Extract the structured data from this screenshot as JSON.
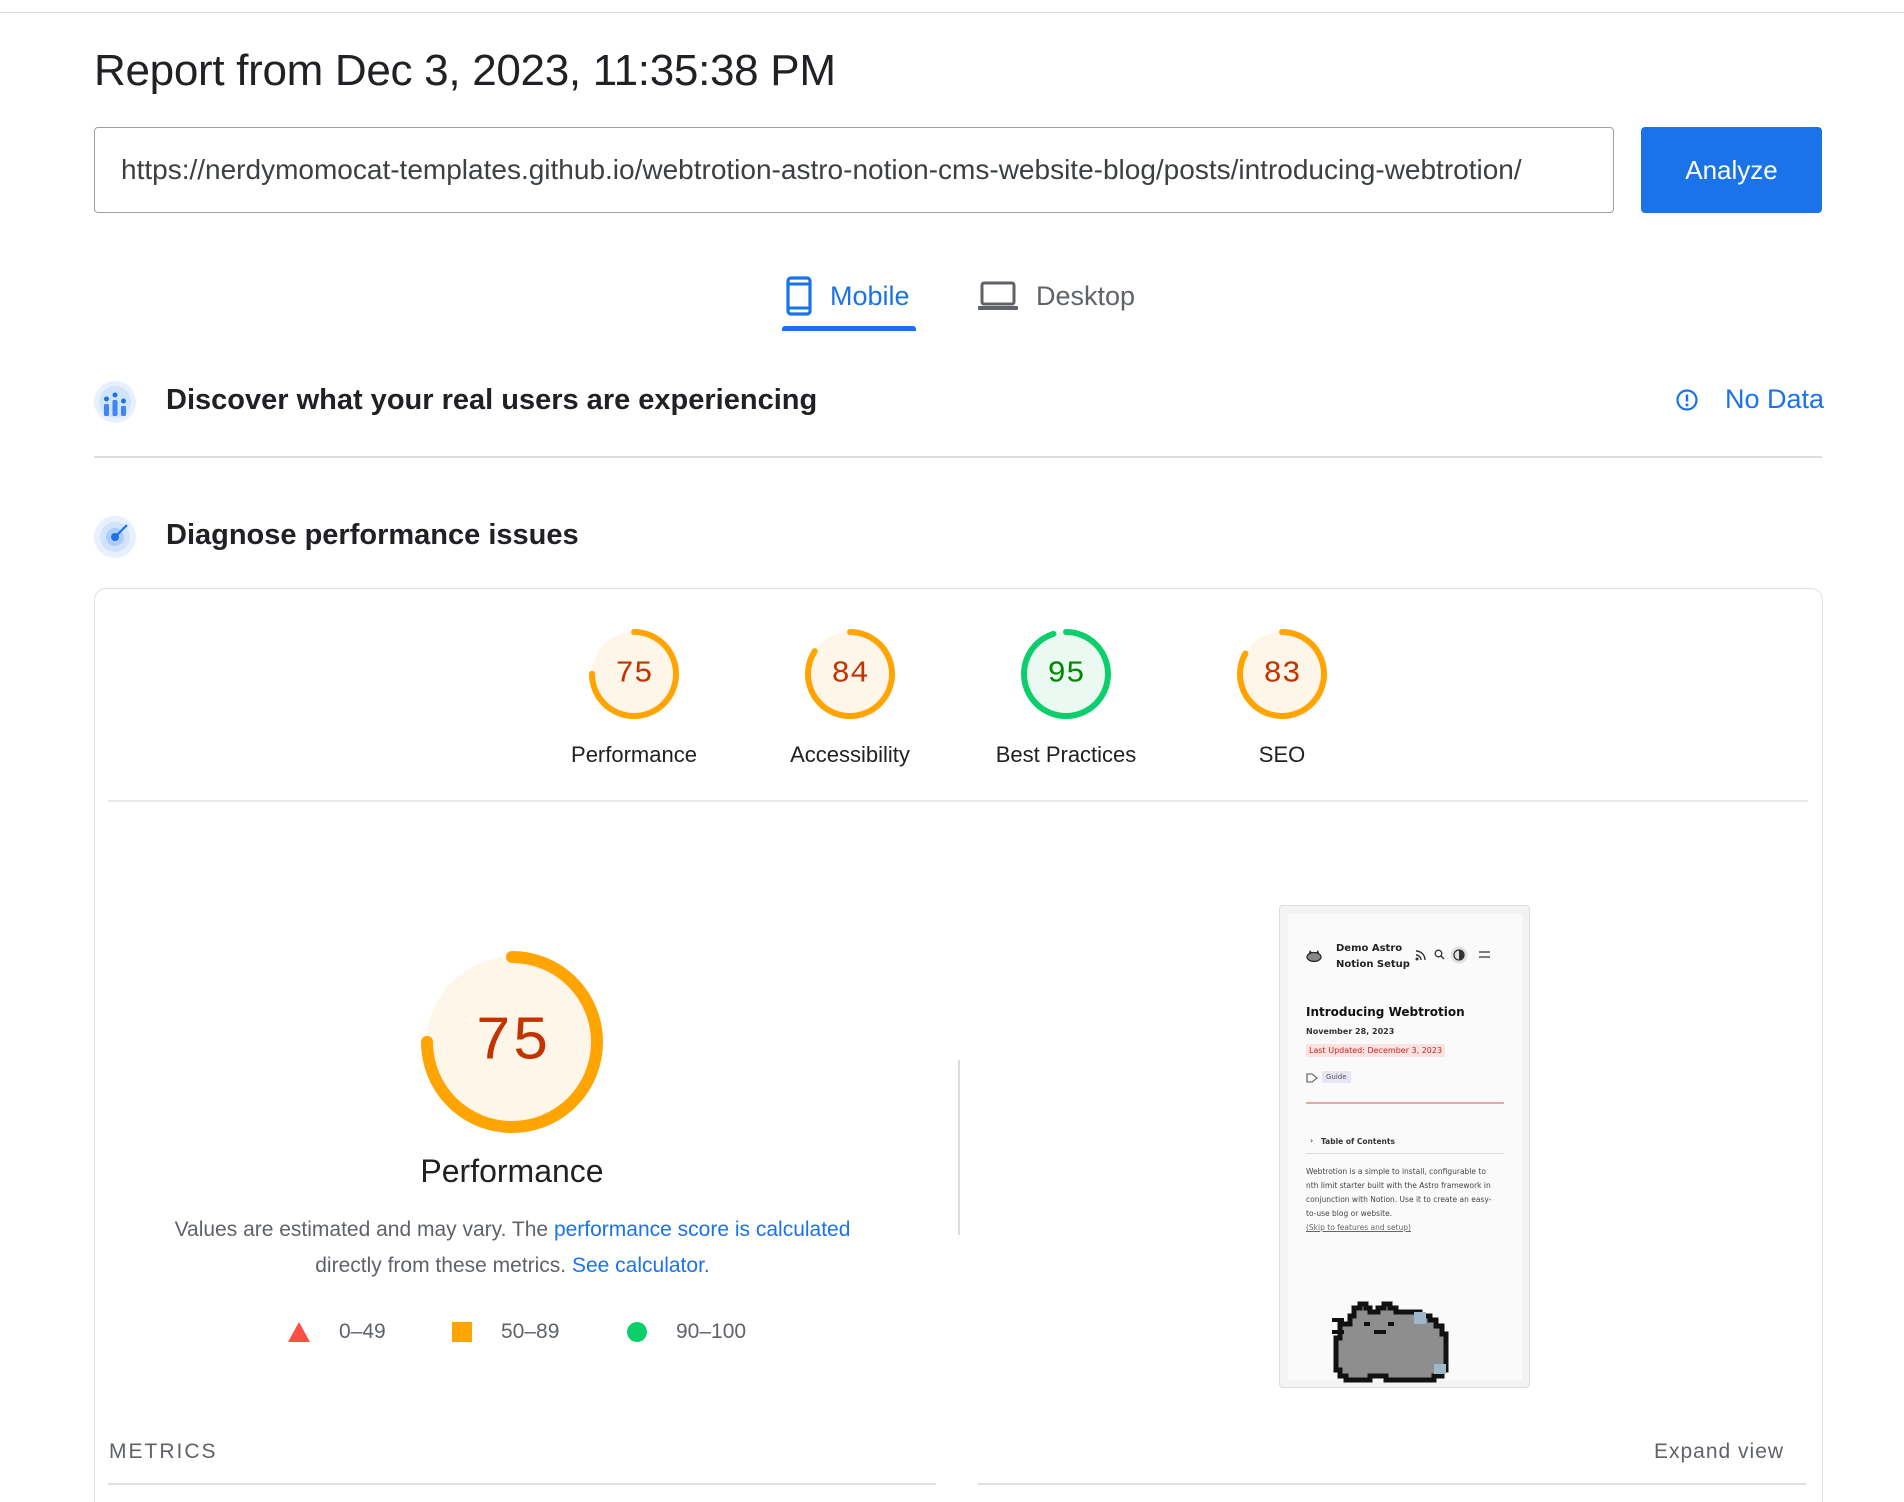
{
  "report": {
    "title": "Report from Dec 3, 2023, 11:35:38 PM"
  },
  "url_bar": {
    "value": "https://nerdymomocat-templates.github.io/webtrotion-astro-notion-cms-website-blog/posts/introducing-webtrotion/",
    "analyze_label": "Analyze"
  },
  "tabs": [
    {
      "label": "Mobile",
      "icon": "phone-icon",
      "selected": true
    },
    {
      "label": "Desktop",
      "icon": "laptop-icon",
      "selected": false
    }
  ],
  "field_data": {
    "heading": "Discover what your real users are experiencing",
    "icon": "users-chart-icon",
    "status_label": "No Data",
    "status_icon": "info-icon"
  },
  "lab_data": {
    "heading": "Diagnose performance issues",
    "icon": "target-icon"
  },
  "categories": [
    {
      "score": 75,
      "label": "Performance",
      "status": "average"
    },
    {
      "score": 84,
      "label": "Accessibility",
      "status": "average"
    },
    {
      "score": 95,
      "label": "Best Practices",
      "status": "pass"
    },
    {
      "score": 83,
      "label": "SEO",
      "status": "average"
    }
  ],
  "colors": {
    "accent": "#1a73e8",
    "pass": "#0cce6b",
    "pass_text": "#008800",
    "average": "#ffa400",
    "average_text": "#c33300",
    "fail": "#ff4e42",
    "average_fill": "#fff6ea",
    "pass_fill": "#eafaf2"
  },
  "performance": {
    "score": 75,
    "title": "Performance",
    "desc_prefix": "Values are estimated and may vary. The ",
    "desc_link": "performance score is calculated",
    "desc_middle": "directly from these metrics. ",
    "desc_link2": "See calculator."
  },
  "legend": [
    {
      "shape": "triangle",
      "range": "0–49"
    },
    {
      "shape": "square",
      "range": "50–89"
    },
    {
      "shape": "circle",
      "range": "90–100"
    }
  ],
  "screenshot": {
    "site_name_line1": "Demo Astro",
    "site_name_line2": "Notion Setup",
    "post_title": "Introducing Webtrotion",
    "date": "November 28, 2023",
    "last_updated": "Last Updated: December 3, 2023",
    "tag": "Guide",
    "toc": "Table of Contents",
    "body_line1": "Webtrotion is a simple to install, configurable to",
    "body_line2": "nth limit starter built with the Astro framework in",
    "body_line3": "conjunction with Notion. Use it to create an easy-",
    "body_line4": "to-use blog  or website.",
    "skip_link": "(Skip to features and setup)"
  },
  "metrics": {
    "label": "METRICS",
    "expand_label": "Expand view"
  }
}
